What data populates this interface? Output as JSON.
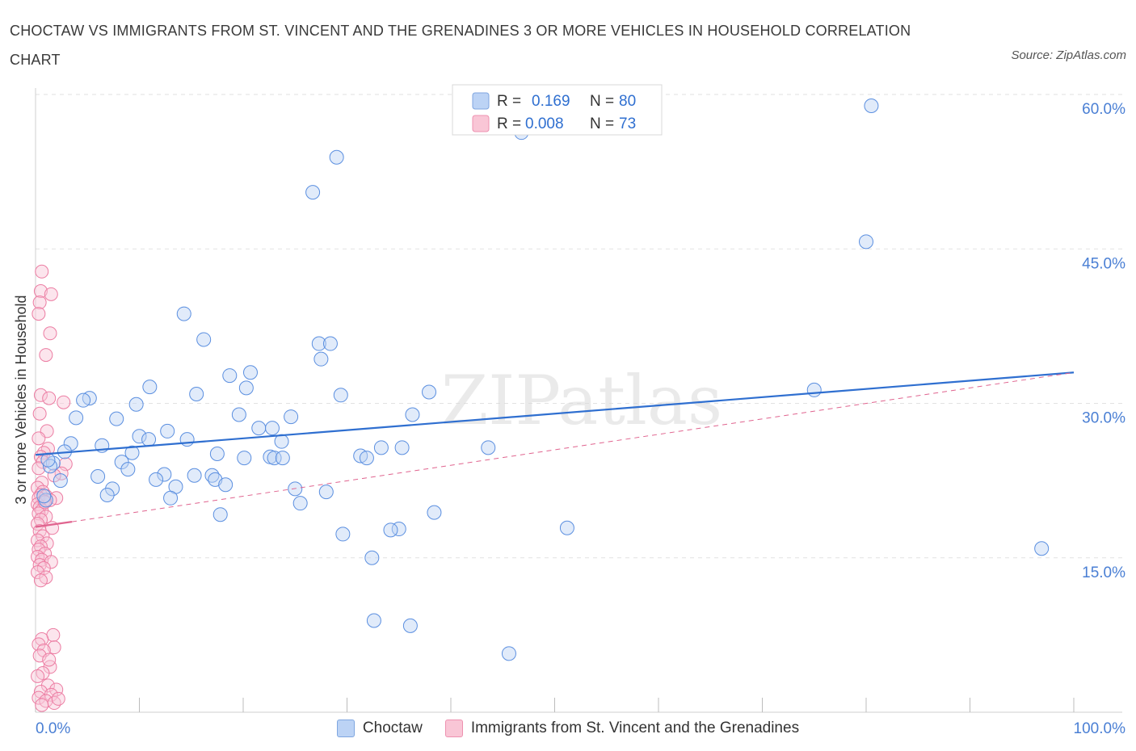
{
  "title": "CHOCTAW VS IMMIGRANTS FROM ST. VINCENT AND THE GRENADINES 3 OR MORE VEHICLES IN HOUSEHOLD CORRELATION CHART",
  "source": "Source: ZipAtlas.com",
  "colors": {
    "blue": "#5b8fe0",
    "blue_fill": "#bcd3f5",
    "blue_line": "#2f6fd0",
    "pink": "#ec7ca2",
    "pink_fill": "#f9c6d6",
    "pink_line": "#e0648f",
    "axis_text": "#4a7fd4"
  },
  "chart_data": {
    "type": "scatter",
    "title": "CHOCTAW VS IMMIGRANTS FROM ST. VINCENT AND THE GRENADINES 3 OR MORE VEHICLES IN HOUSEHOLD CORRELATION CHART",
    "xlabel": "",
    "ylabel": "3 or more Vehicles in Household",
    "xlim": [
      0,
      100
    ],
    "ylim": [
      0,
      60
    ],
    "x_tick_labels": [
      "0.0%",
      "100.0%"
    ],
    "y_ticks": [
      15,
      30,
      45,
      60
    ],
    "y_tick_labels": [
      "15.0%",
      "30.0%",
      "45.0%",
      "60.0%"
    ],
    "grid": true,
    "legend_position": "top-center",
    "watermark": "ZIPatlas",
    "stats": [
      {
        "r_label": "R =",
        "r_value": "0.169",
        "n_label": "N =",
        "n_value": "80"
      },
      {
        "r_label": "R =",
        "r_value": "0.008",
        "n_label": "N =",
        "n_value": "73"
      }
    ],
    "series": [
      {
        "name": "Choctaw",
        "color": "#5b8fe0",
        "trend": [
          [
            0,
            25.0
          ],
          [
            100,
            33.0
          ]
        ],
        "points": [
          [
            80.5,
            58.9
          ],
          [
            46.8,
            56.3
          ],
          [
            29.0,
            53.9
          ],
          [
            26.7,
            50.5
          ],
          [
            80.0,
            45.7
          ],
          [
            14.3,
            38.7
          ],
          [
            16.2,
            36.2
          ],
          [
            27.3,
            35.8
          ],
          [
            28.4,
            35.8
          ],
          [
            27.5,
            34.3
          ],
          [
            20.7,
            33.0
          ],
          [
            18.7,
            32.7
          ],
          [
            11.0,
            31.6
          ],
          [
            20.3,
            31.5
          ],
          [
            75.0,
            31.3
          ],
          [
            37.9,
            31.1
          ],
          [
            15.5,
            30.9
          ],
          [
            29.4,
            30.8
          ],
          [
            5.2,
            30.5
          ],
          [
            4.6,
            30.3
          ],
          [
            9.7,
            29.9
          ],
          [
            19.6,
            28.9
          ],
          [
            24.6,
            28.7
          ],
          [
            36.3,
            28.9
          ],
          [
            3.9,
            28.6
          ],
          [
            7.8,
            28.5
          ],
          [
            21.5,
            27.6
          ],
          [
            22.8,
            27.6
          ],
          [
            12.7,
            27.3
          ],
          [
            10.0,
            26.8
          ],
          [
            10.9,
            26.5
          ],
          [
            14.6,
            26.5
          ],
          [
            23.7,
            26.3
          ],
          [
            3.4,
            26.1
          ],
          [
            6.4,
            25.9
          ],
          [
            33.3,
            25.7
          ],
          [
            35.3,
            25.7
          ],
          [
            43.6,
            25.7
          ],
          [
            2.8,
            25.3
          ],
          [
            17.5,
            25.1
          ],
          [
            9.3,
            25.2
          ],
          [
            31.3,
            24.9
          ],
          [
            31.9,
            24.7
          ],
          [
            22.6,
            24.8
          ],
          [
            20.1,
            24.7
          ],
          [
            23.0,
            24.7
          ],
          [
            23.8,
            24.7
          ],
          [
            8.3,
            24.3
          ],
          [
            1.7,
            24.2
          ],
          [
            1.4,
            23.9
          ],
          [
            8.9,
            23.6
          ],
          [
            12.4,
            23.1
          ],
          [
            17.0,
            23.0
          ],
          [
            15.3,
            23.0
          ],
          [
            6.0,
            22.9
          ],
          [
            17.3,
            22.6
          ],
          [
            11.6,
            22.6
          ],
          [
            2.4,
            22.5
          ],
          [
            18.3,
            22.1
          ],
          [
            13.5,
            21.9
          ],
          [
            7.4,
            21.7
          ],
          [
            25.0,
            21.7
          ],
          [
            28.0,
            21.4
          ],
          [
            6.9,
            21.1
          ],
          [
            13.0,
            20.8
          ],
          [
            25.5,
            20.3
          ],
          [
            38.4,
            19.4
          ],
          [
            17.8,
            19.2
          ],
          [
            51.2,
            17.9
          ],
          [
            35.0,
            17.8
          ],
          [
            34.2,
            17.7
          ],
          [
            29.6,
            17.3
          ],
          [
            96.9,
            15.9
          ],
          [
            32.4,
            15.0
          ],
          [
            32.6,
            8.9
          ],
          [
            36.1,
            8.4
          ],
          [
            45.6,
            5.7
          ],
          [
            1.0,
            20.6
          ],
          [
            0.8,
            21.0
          ],
          [
            1.2,
            24.5
          ]
        ]
      },
      {
        "name": "Immigrants from St. Vincent and the Grenadines",
        "color": "#ec7ca2",
        "trend_solid": [
          [
            0,
            18.0
          ],
          [
            3.5,
            18.5
          ]
        ],
        "trend_dashed": [
          [
            3.5,
            18.5
          ],
          [
            100,
            33.0
          ]
        ],
        "points": [
          [
            0.6,
            42.8
          ],
          [
            0.5,
            40.9
          ],
          [
            1.5,
            40.6
          ],
          [
            0.4,
            39.8
          ],
          [
            0.3,
            38.7
          ],
          [
            1.4,
            36.8
          ],
          [
            1.0,
            34.7
          ],
          [
            0.5,
            30.8
          ],
          [
            1.3,
            30.5
          ],
          [
            2.7,
            30.1
          ],
          [
            0.4,
            29.0
          ],
          [
            1.1,
            27.3
          ],
          [
            0.3,
            26.6
          ],
          [
            1.2,
            25.6
          ],
          [
            0.8,
            25.2
          ],
          [
            0.5,
            24.8
          ],
          [
            0.7,
            24.3
          ],
          [
            2.9,
            24.1
          ],
          [
            0.3,
            23.7
          ],
          [
            2.5,
            23.2
          ],
          [
            1.8,
            23.0
          ],
          [
            0.6,
            22.3
          ],
          [
            0.2,
            21.8
          ],
          [
            0.7,
            21.4
          ],
          [
            0.5,
            21.1
          ],
          [
            1.0,
            21.0
          ],
          [
            0.3,
            20.8
          ],
          [
            2.0,
            20.8
          ],
          [
            1.4,
            20.6
          ],
          [
            0.8,
            20.5
          ],
          [
            0.2,
            20.2
          ],
          [
            0.4,
            19.9
          ],
          [
            0.6,
            19.6
          ],
          [
            0.3,
            19.3
          ],
          [
            1.0,
            19.0
          ],
          [
            0.5,
            18.7
          ],
          [
            0.2,
            18.3
          ],
          [
            1.6,
            17.9
          ],
          [
            0.4,
            17.6
          ],
          [
            0.7,
            17.1
          ],
          [
            0.2,
            16.7
          ],
          [
            1.1,
            16.4
          ],
          [
            0.5,
            16.1
          ],
          [
            0.3,
            15.8
          ],
          [
            0.9,
            15.4
          ],
          [
            0.2,
            15.1
          ],
          [
            0.6,
            14.8
          ],
          [
            1.5,
            14.6
          ],
          [
            0.4,
            14.3
          ],
          [
            0.8,
            14.0
          ],
          [
            0.2,
            13.6
          ],
          [
            1.0,
            13.1
          ],
          [
            0.5,
            12.8
          ],
          [
            1.7,
            7.5
          ],
          [
            0.6,
            7.1
          ],
          [
            0.3,
            6.6
          ],
          [
            1.8,
            6.3
          ],
          [
            0.8,
            6.0
          ],
          [
            0.4,
            5.5
          ],
          [
            1.4,
            4.4
          ],
          [
            0.7,
            3.8
          ],
          [
            0.2,
            3.5
          ],
          [
            1.2,
            2.6
          ],
          [
            2.0,
            2.2
          ],
          [
            0.5,
            2.0
          ],
          [
            1.5,
            1.7
          ],
          [
            0.3,
            1.4
          ],
          [
            1.0,
            1.1
          ],
          [
            1.8,
            0.9
          ],
          [
            0.6,
            0.7
          ],
          [
            2.2,
            1.3
          ],
          [
            1.3,
            5.1
          ],
          [
            0.9,
            20.4
          ]
        ]
      }
    ]
  }
}
